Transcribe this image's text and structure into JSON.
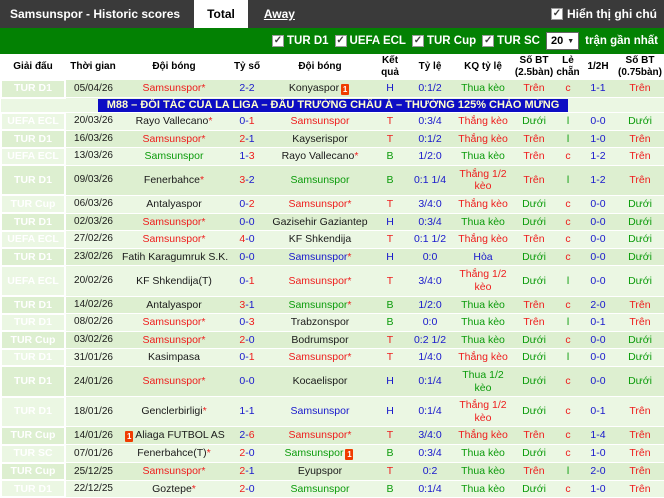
{
  "topbar": {
    "title": "Samsunspor - Historic scores",
    "tab_total": "Total",
    "tab_away": "Away",
    "show_notes_label": "Hiển thị ghi chú",
    "show_notes_checked": true
  },
  "filterbar": {
    "leagues": [
      {
        "label": "TUR D1",
        "checked": true
      },
      {
        "label": "UEFA ECL",
        "checked": true
      },
      {
        "label": "TUR Cup",
        "checked": true
      },
      {
        "label": "TUR SC",
        "checked": true
      }
    ],
    "count_value": "20",
    "count_suffix": "trận gần nhất"
  },
  "banner": {
    "text": "M88 – ĐỐI TÁC CỦA LA LIGA – ĐẤU TRƯỜNG CHÂU Á – THƯỞNG 125% CHÀO MỪNG"
  },
  "table": {
    "headers": [
      "Giải đấu",
      "Thời gian",
      "Đội bóng",
      "Tỷ số",
      "Đội bóng",
      "Kết quả",
      "Tỷ lệ",
      "KQ tỷ lệ",
      "Số BT (2.5bàn)",
      "Lẻ chẵn",
      "1/2H",
      "Số BT (0.75bàn)"
    ]
  },
  "colors": {
    "accent_red": "#ee1c1c",
    "accent_blue": "#1717cc",
    "accent_green": "#0b9b0b",
    "league_tur_d1": "#e9484b",
    "league_uefa_ecl": "#57a757",
    "league_tur_cup": "#f49a3b",
    "league_tur_sc": "#ef8576",
    "filter_bar": "#038103",
    "topbar": "#3a3a3a",
    "banner_bg": "#0d0dc4"
  },
  "rows": [
    {
      "league": "TUR D1",
      "league_key": "d1",
      "date": "05/04/26",
      "home": {
        "name": "Samsunspor",
        "star": true,
        "color": "red",
        "card": null
      },
      "score": {
        "home": "2",
        "away": "2",
        "home_color": "blue",
        "away_color": "blue"
      },
      "away": {
        "name": "Konyaspor",
        "star": false,
        "color": "black",
        "card": "after"
      },
      "result": {
        "text": "H",
        "color": "blue"
      },
      "handicap": "0:1/2",
      "handicap_result": {
        "text": "Thua kèo",
        "color": "green"
      },
      "over_under_25": {
        "text": "Trên",
        "color": "red"
      },
      "odd_even": {
        "text": "c",
        "color": "red"
      },
      "half_score": "1-1",
      "over_under_075": {
        "text": "Trên",
        "color": "red"
      }
    },
    {
      "league": "UEFA ECL",
      "league_key": "ecl",
      "date": "20/03/26",
      "home": {
        "name": "Rayo Vallecano",
        "star": true,
        "color": "black",
        "card": null
      },
      "score": {
        "home": "0",
        "away": "1",
        "home_color": "blue",
        "away_color": "red"
      },
      "away": {
        "name": "Samsunspor",
        "star": false,
        "color": "red",
        "card": null
      },
      "result": {
        "text": "T",
        "color": "red"
      },
      "handicap": "0:3/4",
      "handicap_result": {
        "text": "Thắng kèo",
        "color": "red"
      },
      "over_under_25": {
        "text": "Dưới",
        "color": "green"
      },
      "odd_even": {
        "text": "l",
        "color": "green"
      },
      "half_score": "0-0",
      "over_under_075": {
        "text": "Dưới",
        "color": "green"
      }
    },
    {
      "league": "TUR D1",
      "league_key": "d1",
      "date": "16/03/26",
      "home": {
        "name": "Samsunspor",
        "star": true,
        "color": "red",
        "card": null
      },
      "score": {
        "home": "2",
        "away": "1",
        "home_color": "red",
        "away_color": "blue"
      },
      "away": {
        "name": "Kayserispor",
        "star": false,
        "color": "black",
        "card": null
      },
      "result": {
        "text": "T",
        "color": "red"
      },
      "handicap": "0:1/2",
      "handicap_result": {
        "text": "Thắng kèo",
        "color": "red"
      },
      "over_under_25": {
        "text": "Trên",
        "color": "red"
      },
      "odd_even": {
        "text": "l",
        "color": "green"
      },
      "half_score": "1-0",
      "over_under_075": {
        "text": "Trên",
        "color": "red"
      }
    },
    {
      "league": "UEFA ECL",
      "league_key": "ecl",
      "date": "13/03/26",
      "home": {
        "name": "Samsunspor",
        "star": false,
        "color": "green",
        "card": null
      },
      "score": {
        "home": "1",
        "away": "3",
        "home_color": "blue",
        "away_color": "red"
      },
      "away": {
        "name": "Rayo Vallecano",
        "star": true,
        "color": "black",
        "card": null
      },
      "result": {
        "text": "B",
        "color": "green"
      },
      "handicap": "1/2:0",
      "handicap_result": {
        "text": "Thua kèo",
        "color": "green"
      },
      "over_under_25": {
        "text": "Trên",
        "color": "red"
      },
      "odd_even": {
        "text": "c",
        "color": "red"
      },
      "half_score": "1-2",
      "over_under_075": {
        "text": "Trên",
        "color": "red"
      }
    },
    {
      "league": "TUR D1",
      "league_key": "d1",
      "date": "09/03/26",
      "home": {
        "name": "Fenerbahce",
        "star": true,
        "color": "black",
        "card": null
      },
      "score": {
        "home": "3",
        "away": "2",
        "home_color": "red",
        "away_color": "blue"
      },
      "away": {
        "name": "Samsunspor",
        "star": false,
        "color": "green",
        "card": null
      },
      "result": {
        "text": "B",
        "color": "green"
      },
      "handicap": "0:1 1/4",
      "handicap_result": {
        "text": "Thắng 1/2 kèo",
        "color": "red"
      },
      "over_under_25": {
        "text": "Trên",
        "color": "red"
      },
      "odd_even": {
        "text": "l",
        "color": "green"
      },
      "half_score": "1-2",
      "over_under_075": {
        "text": "Trên",
        "color": "red"
      }
    },
    {
      "league": "TUR Cup",
      "league_key": "cup",
      "date": "06/03/26",
      "home": {
        "name": "Antalyaspor",
        "star": false,
        "color": "black",
        "card": null
      },
      "score": {
        "home": "0",
        "away": "2",
        "home_color": "blue",
        "away_color": "red"
      },
      "away": {
        "name": "Samsunspor",
        "star": true,
        "color": "red",
        "card": null
      },
      "result": {
        "text": "T",
        "color": "red"
      },
      "handicap": "3/4:0",
      "handicap_result": {
        "text": "Thắng kèo",
        "color": "red"
      },
      "over_under_25": {
        "text": "Dưới",
        "color": "green"
      },
      "odd_even": {
        "text": "c",
        "color": "red"
      },
      "half_score": "0-0",
      "over_under_075": {
        "text": "Dưới",
        "color": "green"
      }
    },
    {
      "league": "TUR D1",
      "league_key": "d1",
      "date": "02/03/26",
      "home": {
        "name": "Samsunspor",
        "star": true,
        "color": "red",
        "card": null
      },
      "score": {
        "home": "0",
        "away": "0",
        "home_color": "blue",
        "away_color": "blue"
      },
      "away": {
        "name": "Gazisehir Gaziantep",
        "star": false,
        "color": "black",
        "card": null
      },
      "result": {
        "text": "H",
        "color": "blue"
      },
      "handicap": "0:3/4",
      "handicap_result": {
        "text": "Thua kèo",
        "color": "green"
      },
      "over_under_25": {
        "text": "Dưới",
        "color": "green"
      },
      "odd_even": {
        "text": "c",
        "color": "red"
      },
      "half_score": "0-0",
      "over_under_075": {
        "text": "Dưới",
        "color": "green"
      }
    },
    {
      "league": "UEFA ECL",
      "league_key": "ecl",
      "date": "27/02/26",
      "home": {
        "name": "Samsunspor",
        "star": true,
        "color": "red",
        "card": null
      },
      "score": {
        "home": "4",
        "away": "0",
        "home_color": "red",
        "away_color": "blue"
      },
      "away": {
        "name": "KF Shkendija",
        "star": false,
        "color": "black",
        "card": null
      },
      "result": {
        "text": "T",
        "color": "red"
      },
      "handicap": "0:1 1/2",
      "handicap_result": {
        "text": "Thắng kèo",
        "color": "red"
      },
      "over_under_25": {
        "text": "Trên",
        "color": "red"
      },
      "odd_even": {
        "text": "c",
        "color": "red"
      },
      "half_score": "0-0",
      "over_under_075": {
        "text": "Dưới",
        "color": "green"
      }
    },
    {
      "league": "TUR D1",
      "league_key": "d1",
      "date": "23/02/26",
      "home": {
        "name": "Fatih Karagumruk S.K.",
        "star": false,
        "color": "black",
        "card": null
      },
      "score": {
        "home": "0",
        "away": "0",
        "home_color": "blue",
        "away_color": "blue"
      },
      "away": {
        "name": "Samsunspor",
        "star": true,
        "color": "blue",
        "card": null
      },
      "result": {
        "text": "H",
        "color": "blue"
      },
      "handicap": "0:0",
      "handicap_result": {
        "text": "Hòa",
        "color": "blue"
      },
      "over_under_25": {
        "text": "Dưới",
        "color": "green"
      },
      "odd_even": {
        "text": "c",
        "color": "red"
      },
      "half_score": "0-0",
      "over_under_075": {
        "text": "Dưới",
        "color": "green"
      }
    },
    {
      "league": "UEFA ECL",
      "league_key": "ecl",
      "date": "20/02/26",
      "home": {
        "name": "KF Shkendija(T)",
        "star": false,
        "color": "black",
        "card": null
      },
      "score": {
        "home": "0",
        "away": "1",
        "home_color": "blue",
        "away_color": "red"
      },
      "away": {
        "name": "Samsunspor",
        "star": true,
        "color": "red",
        "card": null
      },
      "result": {
        "text": "T",
        "color": "red"
      },
      "handicap": "3/4:0",
      "handicap_result": {
        "text": "Thắng 1/2 kèo",
        "color": "red"
      },
      "over_under_25": {
        "text": "Dưới",
        "color": "green"
      },
      "odd_even": {
        "text": "l",
        "color": "green"
      },
      "half_score": "0-0",
      "over_under_075": {
        "text": "Dưới",
        "color": "green"
      }
    },
    {
      "league": "TUR D1",
      "league_key": "d1",
      "date": "14/02/26",
      "home": {
        "name": "Antalyaspor",
        "star": false,
        "color": "black",
        "card": null
      },
      "score": {
        "home": "3",
        "away": "1",
        "home_color": "red",
        "away_color": "blue"
      },
      "away": {
        "name": "Samsunspor",
        "star": true,
        "color": "green",
        "card": null
      },
      "result": {
        "text": "B",
        "color": "green"
      },
      "handicap": "1/2:0",
      "handicap_result": {
        "text": "Thua kèo",
        "color": "green"
      },
      "over_under_25": {
        "text": "Trên",
        "color": "red"
      },
      "odd_even": {
        "text": "c",
        "color": "red"
      },
      "half_score": "2-0",
      "over_under_075": {
        "text": "Trên",
        "color": "red"
      }
    },
    {
      "league": "TUR D1",
      "league_key": "d1",
      "date": "08/02/26",
      "home": {
        "name": "Samsunspor",
        "star": true,
        "color": "red",
        "card": null
      },
      "score": {
        "home": "0",
        "away": "3",
        "home_color": "blue",
        "away_color": "red"
      },
      "away": {
        "name": "Trabzonspor",
        "star": false,
        "color": "black",
        "card": null
      },
      "result": {
        "text": "B",
        "color": "green"
      },
      "handicap": "0:0",
      "handicap_result": {
        "text": "Thua kèo",
        "color": "green"
      },
      "over_under_25": {
        "text": "Trên",
        "color": "red"
      },
      "odd_even": {
        "text": "l",
        "color": "green"
      },
      "half_score": "0-1",
      "over_under_075": {
        "text": "Trên",
        "color": "red"
      }
    },
    {
      "league": "TUR Cup",
      "league_key": "cup",
      "date": "03/02/26",
      "home": {
        "name": "Samsunspor",
        "star": true,
        "color": "red",
        "card": null
      },
      "score": {
        "home": "2",
        "away": "0",
        "home_color": "red",
        "away_color": "blue"
      },
      "away": {
        "name": "Bodrumspor",
        "star": false,
        "color": "black",
        "card": null
      },
      "result": {
        "text": "T",
        "color": "red"
      },
      "handicap": "0:2 1/2",
      "handicap_result": {
        "text": "Thua kèo",
        "color": "green"
      },
      "over_under_25": {
        "text": "Dưới",
        "color": "green"
      },
      "odd_even": {
        "text": "c",
        "color": "red"
      },
      "half_score": "0-0",
      "over_under_075": {
        "text": "Dưới",
        "color": "green"
      }
    },
    {
      "league": "TUR D1",
      "league_key": "d1",
      "date": "31/01/26",
      "home": {
        "name": "Kasimpasa",
        "star": false,
        "color": "black",
        "card": null
      },
      "score": {
        "home": "0",
        "away": "1",
        "home_color": "blue",
        "away_color": "red"
      },
      "away": {
        "name": "Samsunspor",
        "star": true,
        "color": "red",
        "card": null
      },
      "result": {
        "text": "T",
        "color": "red"
      },
      "handicap": "1/4:0",
      "handicap_result": {
        "text": "Thắng kèo",
        "color": "red"
      },
      "over_under_25": {
        "text": "Dưới",
        "color": "green"
      },
      "odd_even": {
        "text": "l",
        "color": "green"
      },
      "half_score": "0-0",
      "over_under_075": {
        "text": "Dưới",
        "color": "green"
      }
    },
    {
      "league": "TUR D1",
      "league_key": "d1",
      "date": "24/01/26",
      "home": {
        "name": "Samsunspor",
        "star": true,
        "color": "red",
        "card": null
      },
      "score": {
        "home": "0",
        "away": "0",
        "home_color": "blue",
        "away_color": "blue"
      },
      "away": {
        "name": "Kocaelispor",
        "star": false,
        "color": "black",
        "card": null
      },
      "result": {
        "text": "H",
        "color": "blue"
      },
      "handicap": "0:1/4",
      "handicap_result": {
        "text": "Thua 1/2 kèo",
        "color": "green"
      },
      "over_under_25": {
        "text": "Dưới",
        "color": "green"
      },
      "odd_even": {
        "text": "c",
        "color": "red"
      },
      "half_score": "0-0",
      "over_under_075": {
        "text": "Dưới",
        "color": "green"
      }
    },
    {
      "league": "TUR D1",
      "league_key": "d1",
      "date": "18/01/26",
      "home": {
        "name": "Genclerbirligi",
        "star": true,
        "color": "black",
        "card": null
      },
      "score": {
        "home": "1",
        "away": "1",
        "home_color": "blue",
        "away_color": "blue"
      },
      "away": {
        "name": "Samsunspor",
        "star": false,
        "color": "blue",
        "card": null
      },
      "result": {
        "text": "H",
        "color": "blue"
      },
      "handicap": "0:1/4",
      "handicap_result": {
        "text": "Thắng 1/2 kèo",
        "color": "red"
      },
      "over_under_25": {
        "text": "Dưới",
        "color": "green"
      },
      "odd_even": {
        "text": "c",
        "color": "red"
      },
      "half_score": "0-1",
      "over_under_075": {
        "text": "Trên",
        "color": "red"
      }
    },
    {
      "league": "TUR Cup",
      "league_key": "cup",
      "date": "14/01/26",
      "home": {
        "name": "Aliaga FUTBOL AS",
        "star": false,
        "color": "black",
        "card": "before"
      },
      "score": {
        "home": "2",
        "away": "6",
        "home_color": "blue",
        "away_color": "red"
      },
      "away": {
        "name": "Samsunspor",
        "star": true,
        "color": "red",
        "card": null
      },
      "result": {
        "text": "T",
        "color": "red"
      },
      "handicap": "3/4:0",
      "handicap_result": {
        "text": "Thắng kèo",
        "color": "red"
      },
      "over_under_25": {
        "text": "Trên",
        "color": "red"
      },
      "odd_even": {
        "text": "c",
        "color": "red"
      },
      "half_score": "1-4",
      "over_under_075": {
        "text": "Trên",
        "color": "red"
      }
    },
    {
      "league": "TUR SC",
      "league_key": "sc",
      "date": "07/01/26",
      "home": {
        "name": "Fenerbahce(T)",
        "star": true,
        "color": "black",
        "card": null
      },
      "score": {
        "home": "2",
        "away": "0",
        "home_color": "red",
        "away_color": "blue"
      },
      "away": {
        "name": "Samsunspor",
        "star": false,
        "color": "green",
        "card": "after"
      },
      "result": {
        "text": "B",
        "color": "green"
      },
      "handicap": "0:3/4",
      "handicap_result": {
        "text": "Thua kèo",
        "color": "green"
      },
      "over_under_25": {
        "text": "Dưới",
        "color": "green"
      },
      "odd_even": {
        "text": "c",
        "color": "red"
      },
      "half_score": "1-0",
      "over_under_075": {
        "text": "Trên",
        "color": "red"
      }
    },
    {
      "league": "TUR Cup",
      "league_key": "cup",
      "date": "25/12/25",
      "home": {
        "name": "Samsunspor",
        "star": true,
        "color": "red",
        "card": null
      },
      "score": {
        "home": "2",
        "away": "1",
        "home_color": "red",
        "away_color": "blue"
      },
      "away": {
        "name": "Eyupspor",
        "star": false,
        "color": "black",
        "card": null
      },
      "result": {
        "text": "T",
        "color": "red"
      },
      "handicap": "0:2",
      "handicap_result": {
        "text": "Thua kèo",
        "color": "green"
      },
      "over_under_25": {
        "text": "Trên",
        "color": "red"
      },
      "odd_even": {
        "text": "l",
        "color": "green"
      },
      "half_score": "2-0",
      "over_under_075": {
        "text": "Trên",
        "color": "red"
      }
    },
    {
      "league": "TUR D1",
      "league_key": "d1",
      "date": "22/12/25",
      "home": {
        "name": "Goztepe",
        "star": true,
        "color": "black",
        "card": null
      },
      "score": {
        "home": "2",
        "away": "0",
        "home_color": "red",
        "away_color": "blue"
      },
      "away": {
        "name": "Samsunspor",
        "star": false,
        "color": "green",
        "card": null
      },
      "result": {
        "text": "B",
        "color": "green"
      },
      "handicap": "0:1/4",
      "handicap_result": {
        "text": "Thua kèo",
        "color": "green"
      },
      "over_under_25": {
        "text": "Dưới",
        "color": "green"
      },
      "odd_even": {
        "text": "c",
        "color": "red"
      },
      "half_score": "1-0",
      "over_under_075": {
        "text": "Trên",
        "color": "red"
      }
    }
  ]
}
